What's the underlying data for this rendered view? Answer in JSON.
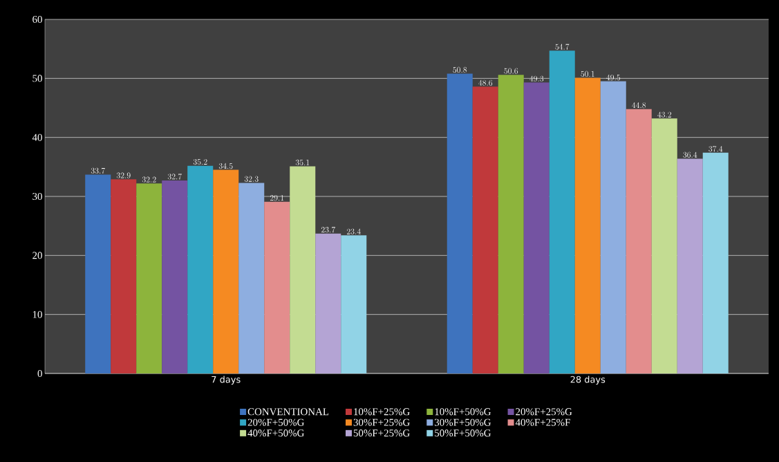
{
  "chart_data": {
    "type": "bar",
    "categories": [
      "7 days",
      "28 days"
    ],
    "series": [
      {
        "name": "CONVENTIONAL",
        "color": "#3e73be",
        "values": [
          33.7,
          50.8
        ]
      },
      {
        "name": "10%F+25%G",
        "color": "#c0393b",
        "values": [
          32.9,
          48.6
        ]
      },
      {
        "name": "10%F+50%G",
        "color": "#8db43c",
        "values": [
          32.2,
          50.6
        ]
      },
      {
        "name": "20%F+25%G",
        "color": "#7453a2",
        "values": [
          32.7,
          49.3
        ]
      },
      {
        "name": "20%F+50%G",
        "color": "#31a6c4",
        "values": [
          35.2,
          54.7
        ]
      },
      {
        "name": "30%F+25%G",
        "color": "#f58a22",
        "values": [
          34.5,
          50.1
        ]
      },
      {
        "name": "30%F+50%G",
        "color": "#8eaee0",
        "values": [
          32.3,
          49.5
        ]
      },
      {
        "name": "40%F+25%F",
        "color": "#e38d8d",
        "values": [
          29.1,
          44.8
        ]
      },
      {
        "name": "40%F+50%G",
        "color": "#c3dc92",
        "values": [
          35.1,
          43.2
        ]
      },
      {
        "name": "50%F+25%G",
        "color": "#b4a4d4",
        "values": [
          23.7,
          36.4
        ]
      },
      {
        "name": "50%F+50%G",
        "color": "#91d3e6",
        "values": [
          23.4,
          37.4
        ]
      }
    ],
    "ylim": [
      0,
      60
    ],
    "yticks": [
      0,
      10,
      20,
      30,
      40,
      50,
      60
    ],
    "grid": "y",
    "data_labels": true,
    "legend": "bottom"
  }
}
